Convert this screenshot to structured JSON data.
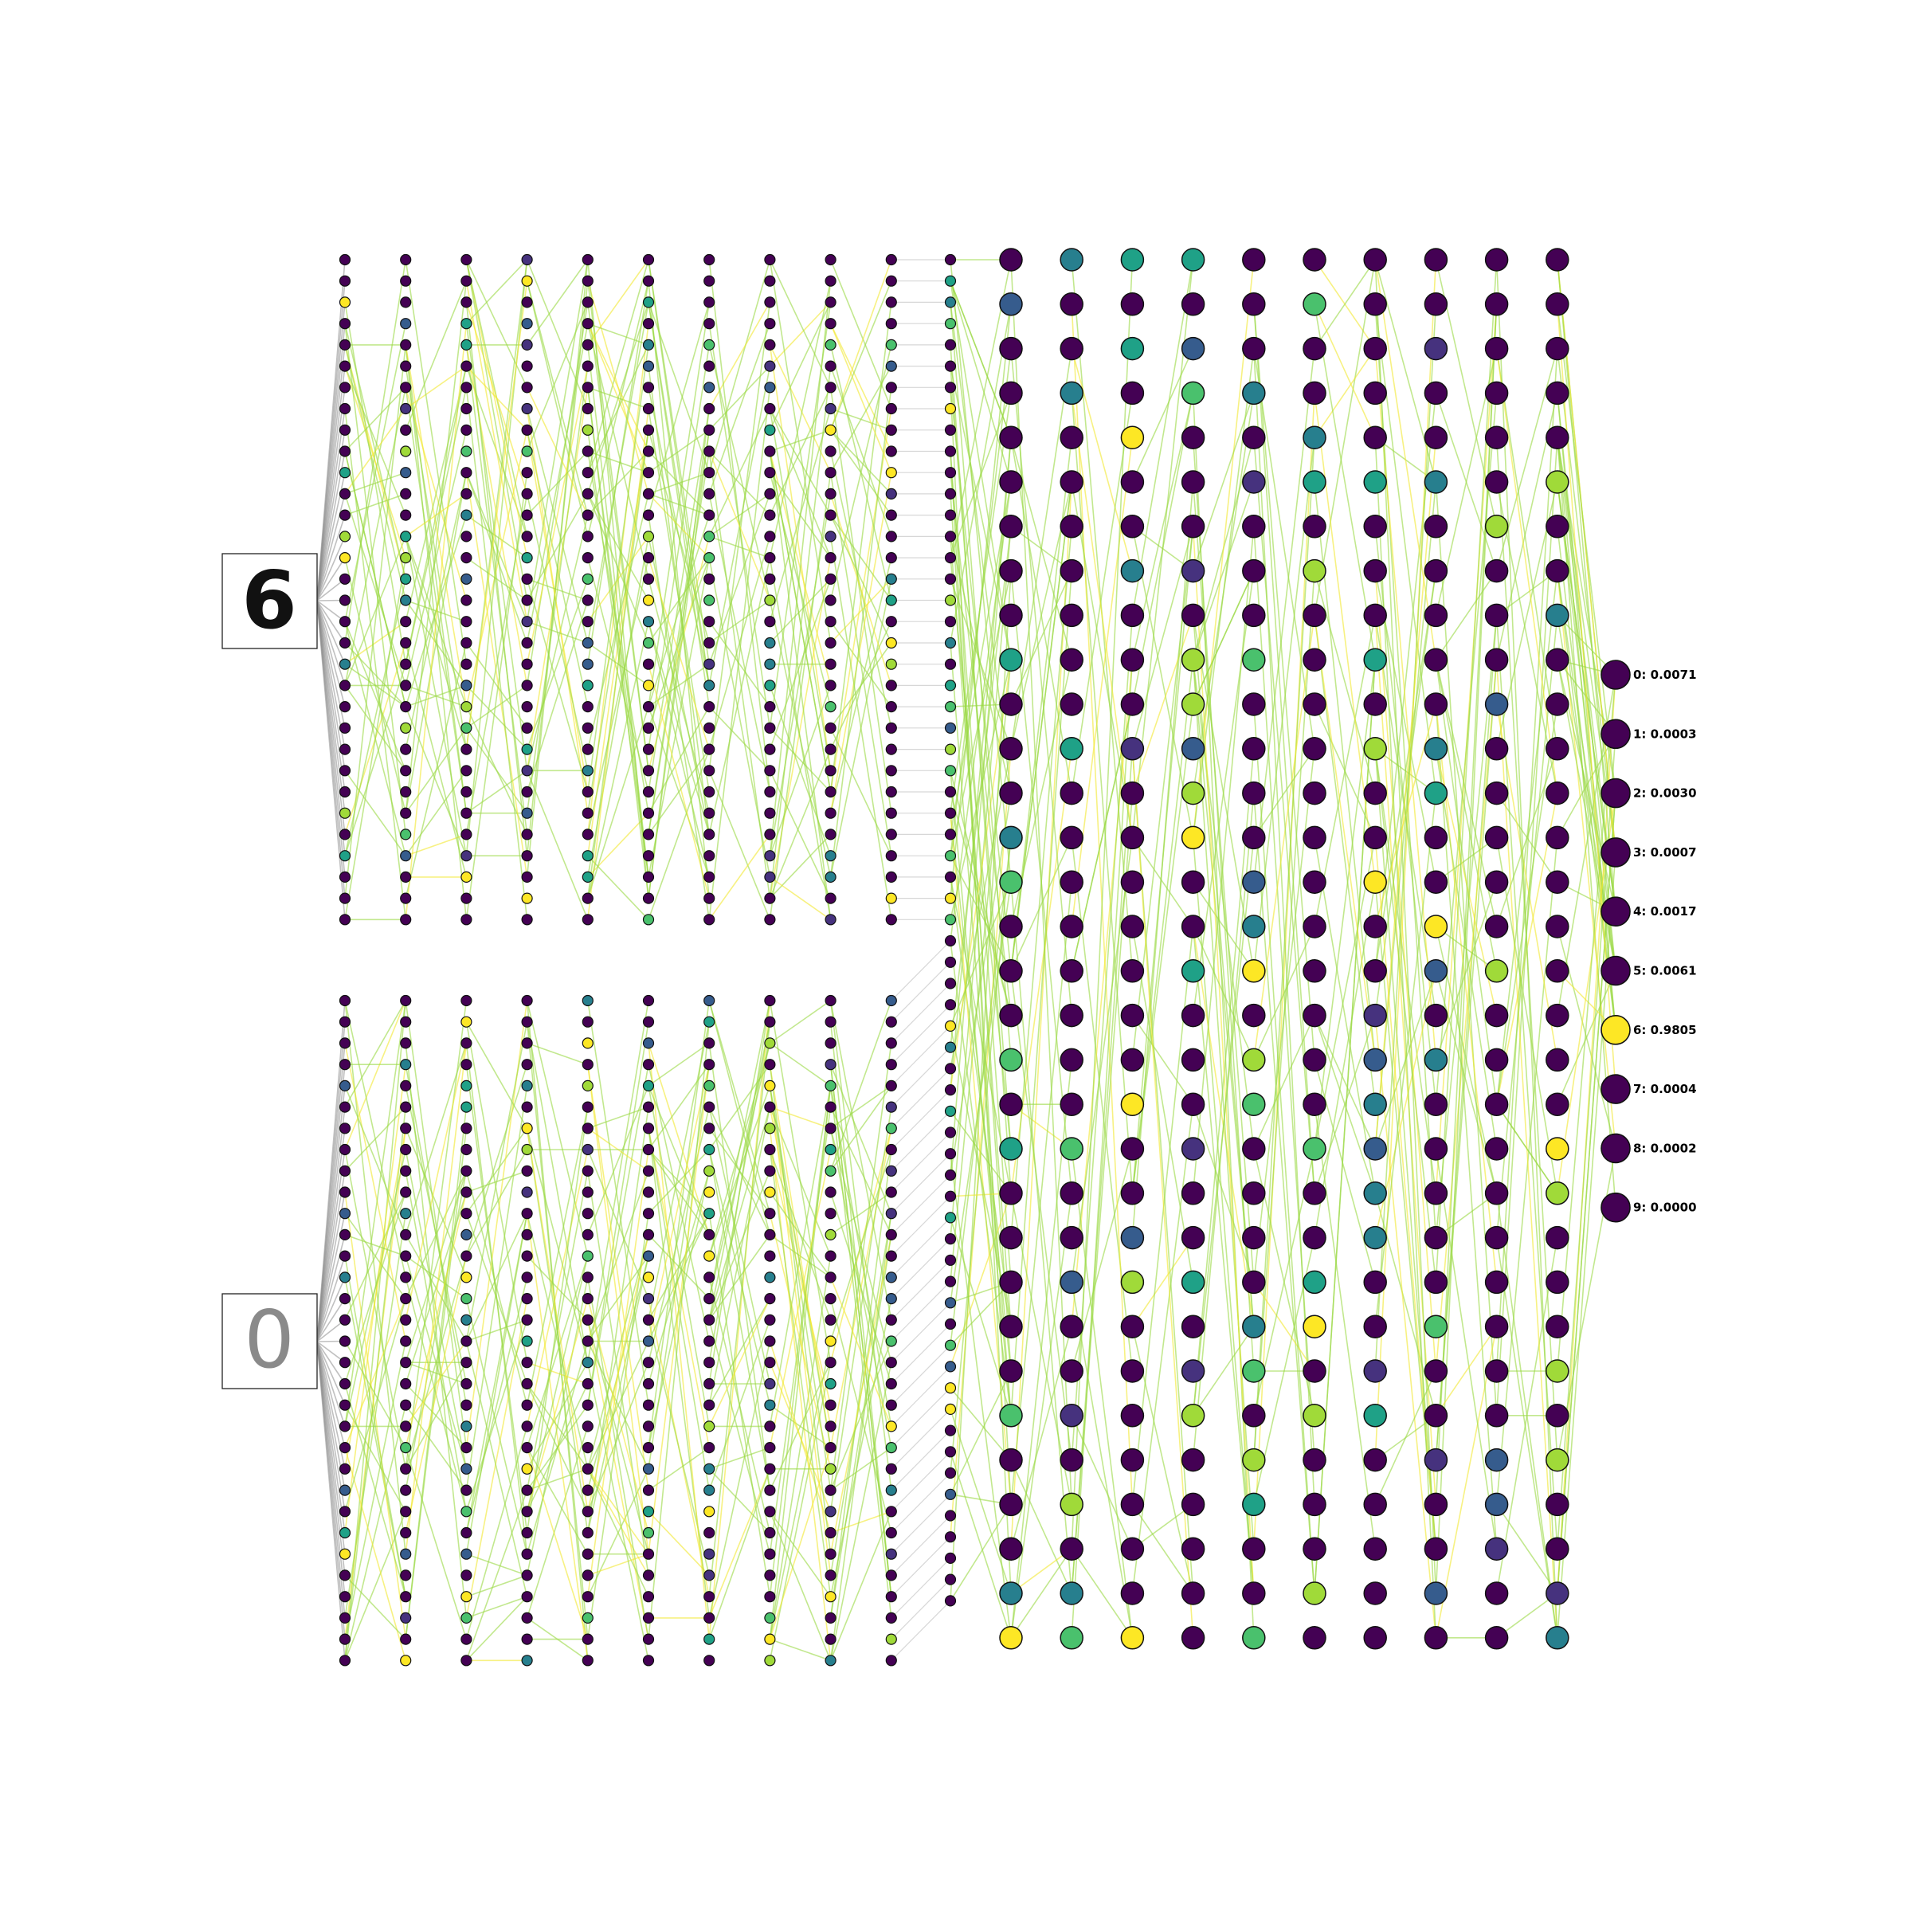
{
  "colors": {
    "palette": [
      "#440154",
      "#46327e",
      "#365c8d",
      "#277f8e",
      "#1fa187",
      "#4ac16d",
      "#a0da39",
      "#fde725"
    ],
    "edge_green": "#9ad942",
    "edge_yellow": "#f2e72f",
    "edge_grey": "#8c8c8c"
  },
  "diagram": {
    "input_digits": {
      "top": "6",
      "bottom": "0"
    },
    "outputs": [
      {
        "label": "0: 0.0071",
        "activation": 0.0071
      },
      {
        "label": "1: 0.0003",
        "activation": 0.0003
      },
      {
        "label": "2: 0.0030",
        "activation": 0.003
      },
      {
        "label": "3: 0.0007",
        "activation": 0.0007
      },
      {
        "label": "4: 0.0017",
        "activation": 0.0017
      },
      {
        "label": "5: 0.0061",
        "activation": 0.0061
      },
      {
        "label": "6: 0.9805",
        "activation": 0.9805
      },
      {
        "label": "7: 0.0004",
        "activation": 0.0004
      },
      {
        "label": "8: 0.0002",
        "activation": 0.0002
      },
      {
        "label": "9: 0.0000",
        "activation": 0.0
      }
    ]
  }
}
